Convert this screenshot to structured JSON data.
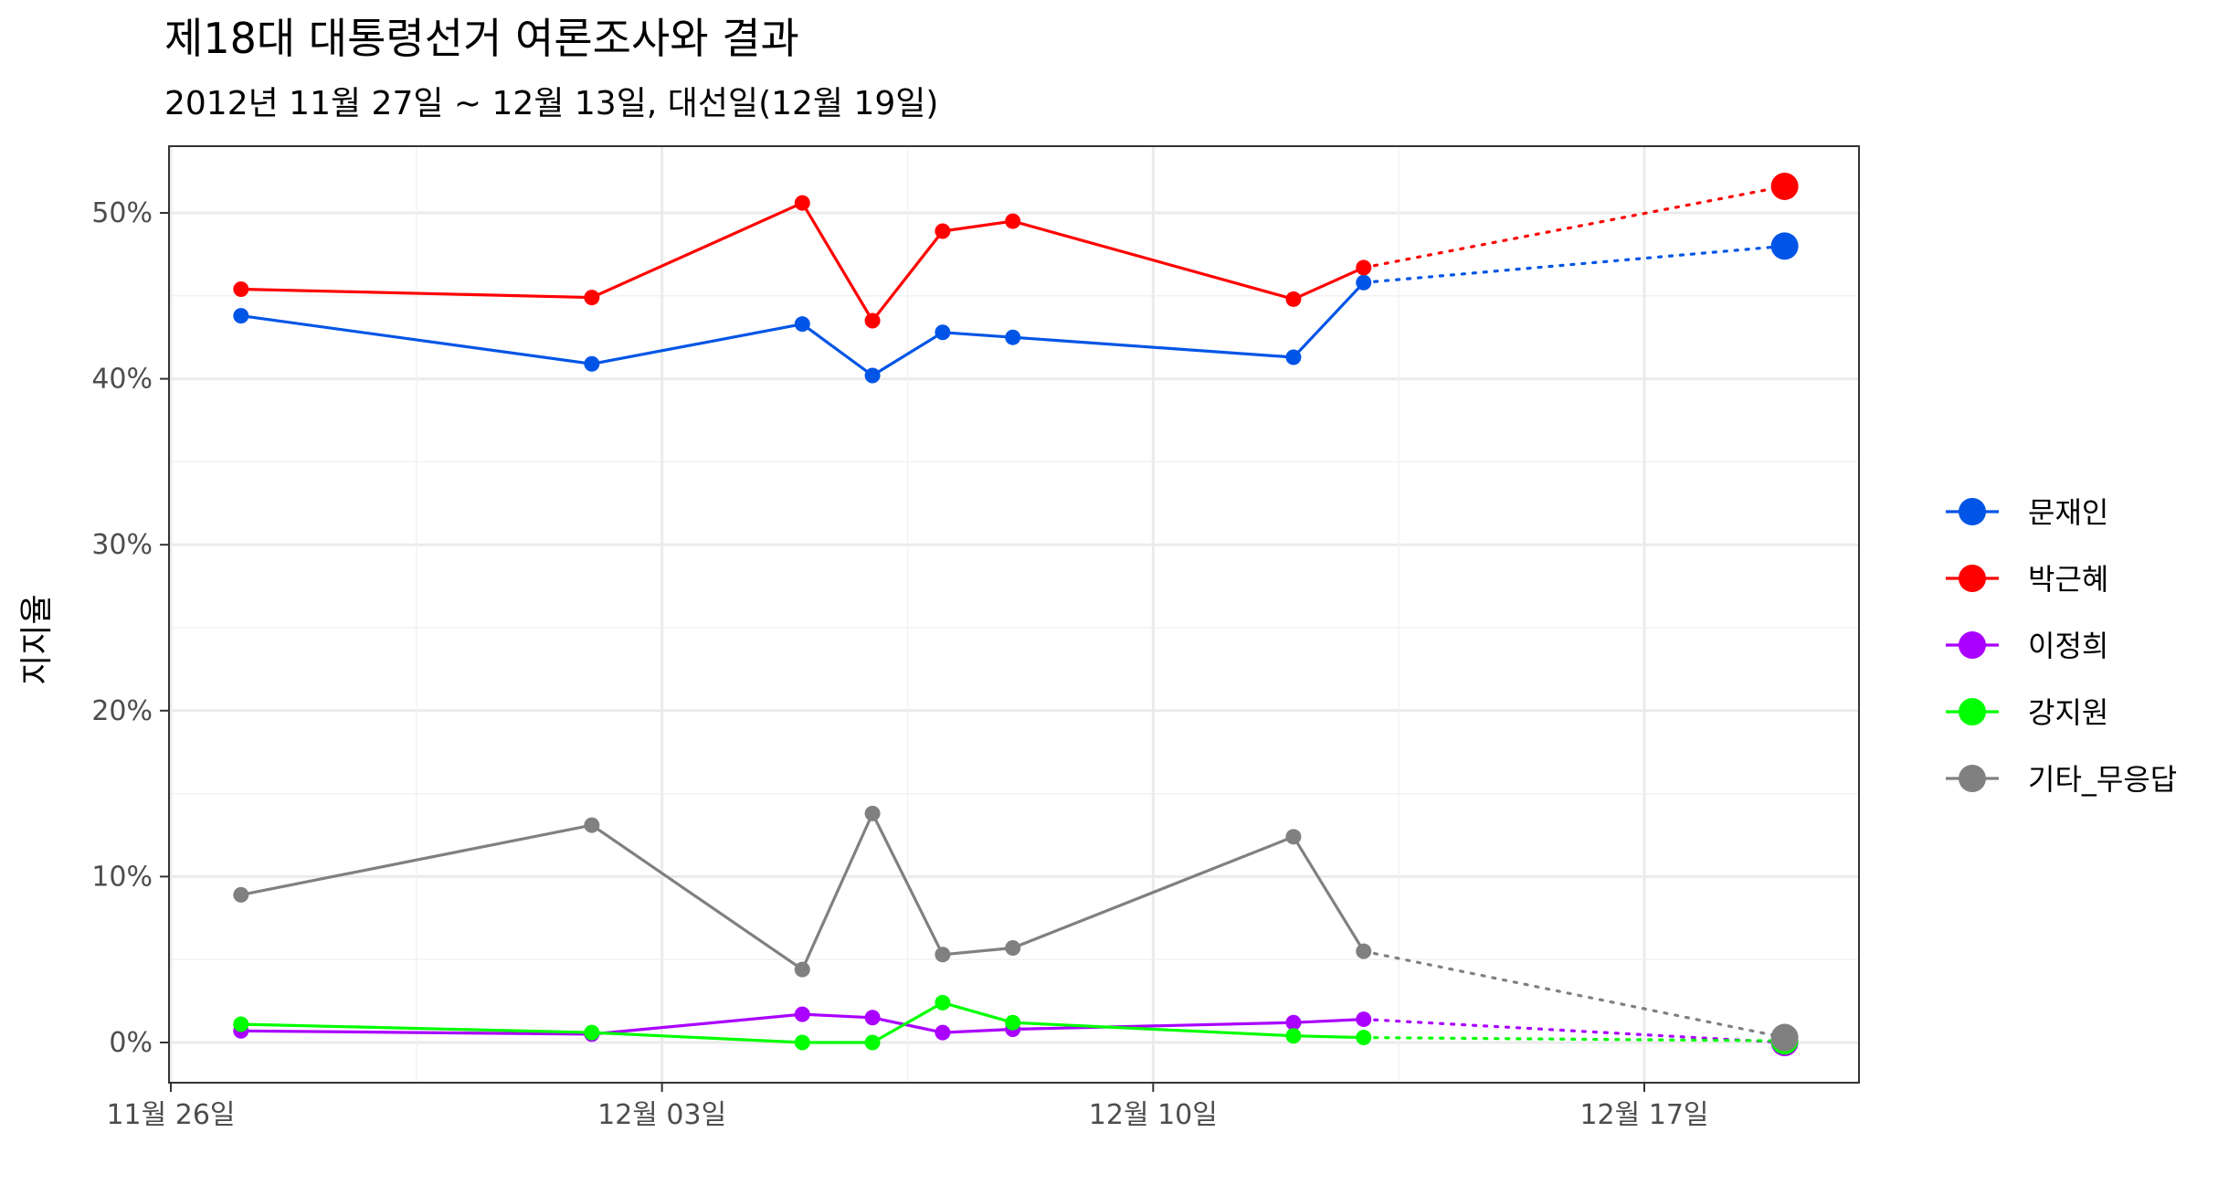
{
  "chart_data": {
    "type": "line",
    "title": "제18대 대통령선거 여론조사와 결과",
    "subtitle": "2012년 11월 27일 ~ 12월 13일, 대선일(12월 19일)",
    "ylabel": "지지율",
    "xlabel": "",
    "x_axis": {
      "min": "2012-11-26",
      "max": "2012-12-19",
      "tick_dates": [
        "2012-11-26",
        "2012-12-03",
        "2012-12-10",
        "2012-12-17"
      ],
      "tick_labels": [
        "11월 26일",
        "12월 03일",
        "12월 10일",
        "12월 17일"
      ]
    },
    "y_axis": {
      "min": 0,
      "max": 0.5,
      "ticks": [
        0,
        0.1,
        0.2,
        0.3,
        0.4,
        0.5
      ],
      "tick_labels": [
        "0%",
        "10%",
        "20%",
        "30%",
        "40%",
        "50%"
      ]
    },
    "grid": true,
    "legend_position": "right",
    "poll_dates": [
      "2012-11-27",
      "2012-12-02",
      "2012-12-05",
      "2012-12-06",
      "2012-12-07",
      "2012-12-08",
      "2012-12-12",
      "2012-12-13"
    ],
    "election_date": "2012-12-19",
    "series": [
      {
        "name": "문재인",
        "color": "#0055e6",
        "values": [
          0.438,
          0.409,
          0.433,
          0.402,
          0.428,
          0.425,
          0.413,
          0.458
        ],
        "result": 0.48
      },
      {
        "name": "박근혜",
        "color": "#ff0000",
        "values": [
          0.454,
          0.449,
          0.506,
          0.435,
          0.489,
          0.495,
          0.448,
          0.467
        ],
        "result": 0.516
      },
      {
        "name": "이정희",
        "color": "#aa00ff",
        "values": [
          0.007,
          0.005,
          0.017,
          0.015,
          0.006,
          0.008,
          0.012,
          0.014
        ],
        "result": 0.0
      },
      {
        "name": "강지원",
        "color": "#00ff00",
        "values": [
          0.011,
          0.006,
          0.0,
          0.0,
          0.024,
          0.012,
          0.004,
          0.003
        ],
        "result": 0.001
      },
      {
        "name": "기타_무응답",
        "color": "#808080",
        "values": [
          0.089,
          0.131,
          0.044,
          0.138,
          0.053,
          0.057,
          0.124,
          0.055
        ],
        "result": 0.003
      }
    ]
  }
}
